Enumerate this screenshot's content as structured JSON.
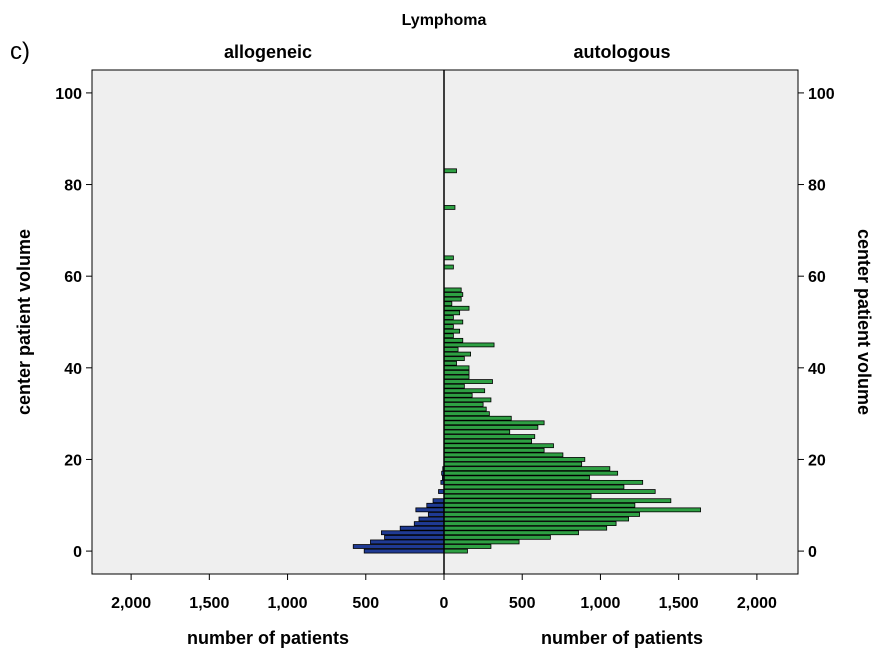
{
  "panel_label": "c)",
  "chart_data": {
    "type": "bar",
    "orientation": "horizontal",
    "title": "Lymphoma",
    "left_subtitle": "allogeneic",
    "right_subtitle": "autologous",
    "ylabel_left": "center patient volume",
    "ylabel_right": "center patient volume",
    "xlabel_left": "number of patients",
    "xlabel_right": "number of patients",
    "ylim": [
      -5,
      105
    ],
    "xlim_left": [
      0,
      2250
    ],
    "xlim_right": [
      0,
      2250
    ],
    "y_ticks": [
      "0",
      "20",
      "40",
      "60",
      "80",
      "100"
    ],
    "x_ticks_left": [
      "2,000",
      "1,500",
      "1,000",
      "500",
      "0"
    ],
    "x_ticks_right": [
      "500",
      "1,000",
      "1,500",
      "2,000"
    ],
    "colors": {
      "allogeneic": "#1f3a93",
      "autologous": "#2ea043",
      "plot_bg": "#efefef",
      "bar_edge": "#000000"
    },
    "series": [
      {
        "name": "allogeneic",
        "y": [
          0,
          1,
          2,
          3,
          4,
          5,
          6,
          7,
          8,
          9,
          10,
          11,
          13,
          15,
          16,
          17,
          18
        ],
        "values": [
          510,
          580,
          470,
          380,
          400,
          280,
          190,
          160,
          100,
          180,
          110,
          70,
          35,
          20,
          10,
          15,
          8
        ]
      },
      {
        "name": "autologous",
        "y": [
          0,
          1,
          2,
          3,
          4,
          5,
          6,
          7,
          8,
          9,
          10,
          11,
          12,
          13,
          14,
          15,
          16,
          17,
          18,
          19,
          20,
          21,
          22,
          23,
          24,
          25,
          26,
          27,
          28,
          29,
          30,
          31,
          32,
          33,
          34,
          35,
          36,
          37,
          38,
          39,
          40,
          41,
          42,
          43,
          44,
          45,
          46,
          47,
          48,
          49,
          50,
          51,
          52,
          53,
          54,
          55,
          56,
          57,
          62,
          64,
          75,
          83
        ],
        "values": [
          150,
          300,
          480,
          680,
          860,
          1040,
          1100,
          1180,
          1250,
          1640,
          1220,
          1450,
          940,
          1350,
          1150,
          1270,
          930,
          1110,
          1060,
          880,
          900,
          760,
          640,
          700,
          560,
          580,
          420,
          600,
          640,
          430,
          290,
          270,
          250,
          300,
          180,
          260,
          130,
          310,
          160,
          160,
          160,
          80,
          130,
          170,
          90,
          320,
          120,
          60,
          100,
          60,
          120,
          60,
          100,
          160,
          50,
          110,
          120,
          110,
          60,
          60,
          70,
          80
        ]
      }
    ]
  }
}
